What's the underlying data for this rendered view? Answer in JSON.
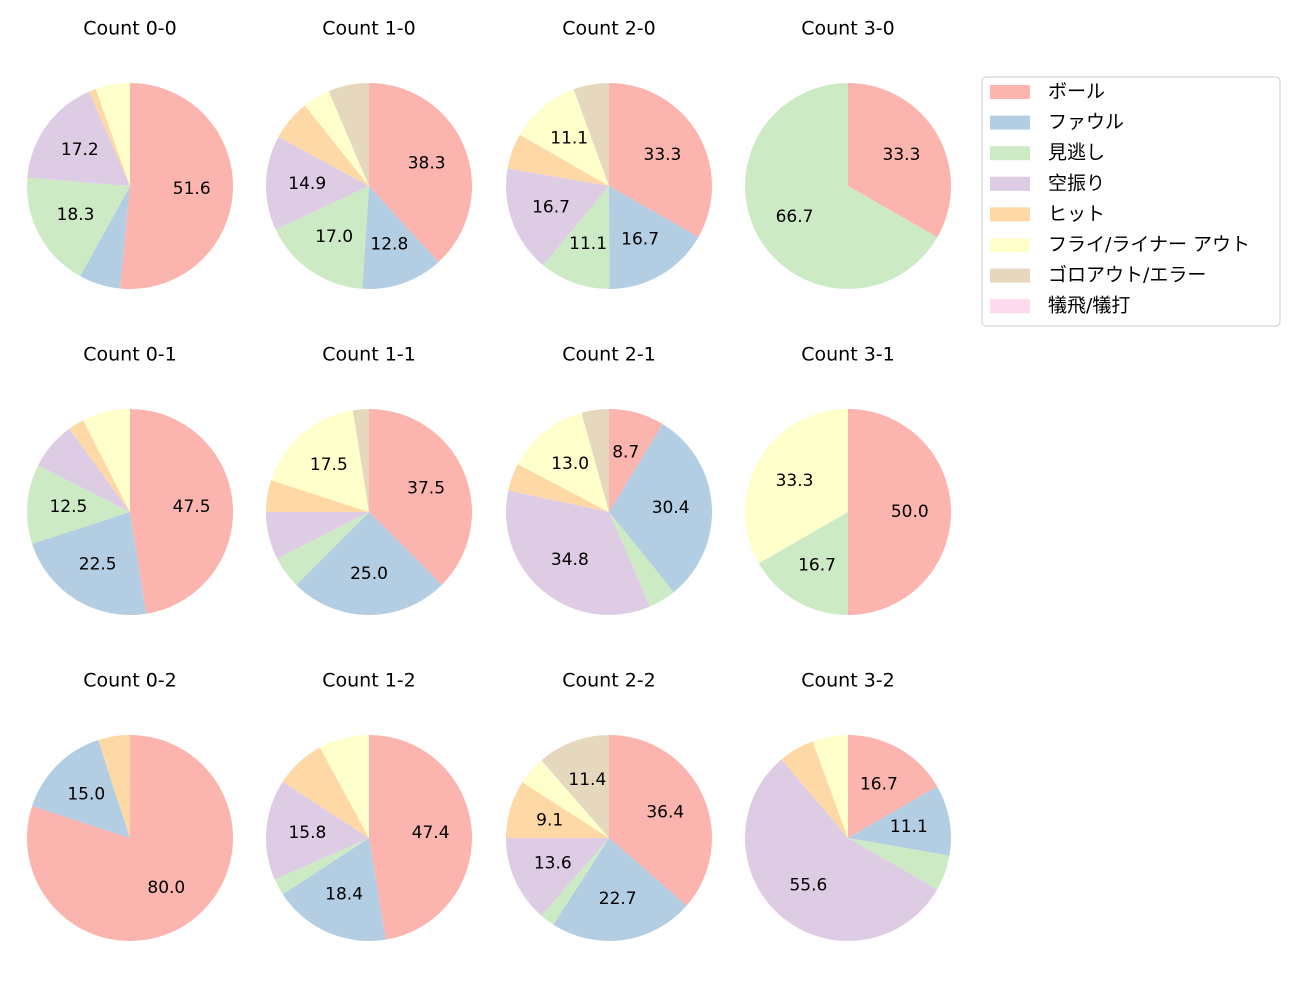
{
  "chart_data": [
    {
      "type": "pie",
      "title": "Count 0-0",
      "values": [
        51.6,
        6.5,
        18.3,
        17.2,
        1.1,
        5.4,
        0,
        0
      ],
      "value_labels": [
        "51.6",
        null,
        "18.3",
        "17.2",
        null,
        null,
        null,
        null
      ]
    },
    {
      "type": "pie",
      "title": "Count 1-0",
      "values": [
        38.3,
        12.8,
        17.0,
        14.9,
        6.4,
        4.3,
        6.4,
        0
      ],
      "value_labels": [
        "38.3",
        "12.8",
        "17.0",
        "14.9",
        null,
        null,
        null,
        null
      ]
    },
    {
      "type": "pie",
      "title": "Count 2-0",
      "values": [
        33.3,
        16.7,
        11.1,
        16.7,
        5.6,
        11.1,
        5.6,
        0
      ],
      "value_labels": [
        "33.3",
        "16.7",
        "11.1",
        "16.7",
        null,
        "11.1",
        null,
        null
      ]
    },
    {
      "type": "pie",
      "title": "Count 3-0",
      "values": [
        33.3,
        0,
        66.7,
        0,
        0,
        0,
        0,
        0
      ],
      "value_labels": [
        "33.3",
        null,
        "66.7",
        null,
        null,
        null,
        null,
        null
      ]
    },
    {
      "type": "pie",
      "title": "Count 0-1",
      "values": [
        47.5,
        22.5,
        12.5,
        7.5,
        2.5,
        7.5,
        0,
        0
      ],
      "value_labels": [
        "47.5",
        "22.5",
        "12.5",
        null,
        null,
        null,
        null,
        null
      ]
    },
    {
      "type": "pie",
      "title": "Count 1-1",
      "values": [
        37.5,
        25.0,
        5.0,
        7.5,
        5.0,
        17.5,
        2.5,
        0
      ],
      "value_labels": [
        "37.5",
        "25.0",
        null,
        null,
        null,
        "17.5",
        null,
        null
      ]
    },
    {
      "type": "pie",
      "title": "Count 2-1",
      "values": [
        8.7,
        30.4,
        4.3,
        34.8,
        4.3,
        13.0,
        4.3,
        0
      ],
      "value_labels": [
        "8.7",
        "30.4",
        null,
        "34.8",
        null,
        "13.0",
        null,
        null
      ]
    },
    {
      "type": "pie",
      "title": "Count 3-1",
      "values": [
        50.0,
        0,
        16.7,
        0,
        0,
        33.3,
        0,
        0
      ],
      "value_labels": [
        "50.0",
        null,
        "16.7",
        null,
        null,
        "33.3",
        null,
        null
      ]
    },
    {
      "type": "pie",
      "title": "Count 0-2",
      "values": [
        80.0,
        15.0,
        0,
        0,
        5.0,
        0,
        0,
        0
      ],
      "value_labels": [
        "80.0",
        "15.0",
        null,
        null,
        null,
        null,
        null,
        null
      ]
    },
    {
      "type": "pie",
      "title": "Count 1-2",
      "values": [
        47.4,
        18.4,
        2.6,
        15.8,
        7.9,
        7.9,
        0,
        0
      ],
      "value_labels": [
        "47.4",
        "18.4",
        null,
        "15.8",
        null,
        null,
        null,
        null
      ]
    },
    {
      "type": "pie",
      "title": "Count 2-2",
      "values": [
        36.4,
        22.7,
        2.3,
        13.6,
        9.1,
        4.5,
        11.4,
        0
      ],
      "value_labels": [
        "36.4",
        "22.7",
        null,
        "13.6",
        "9.1",
        null,
        "11.4",
        null
      ]
    },
    {
      "type": "pie",
      "title": "Count 3-2",
      "values": [
        16.7,
        11.1,
        5.6,
        55.6,
        5.6,
        5.6,
        0,
        0
      ],
      "value_labels": [
        "16.7",
        "11.1",
        null,
        "55.6",
        null,
        null,
        null,
        null
      ]
    }
  ],
  "legend": {
    "categories": [
      "ボール",
      "ファウル",
      "見逃し",
      "空振り",
      "ヒット",
      "フライ/ライナー アウト",
      "ゴロアウト/エラー",
      "犠飛/犠打"
    ],
    "colors": [
      "#fbb4ae",
      "#b3cde3",
      "#ccebc5",
      "#decbe4",
      "#fed9a6",
      "#ffffcc",
      "#e5d8bd",
      "#fddaec"
    ],
    "loc": "upper right"
  }
}
